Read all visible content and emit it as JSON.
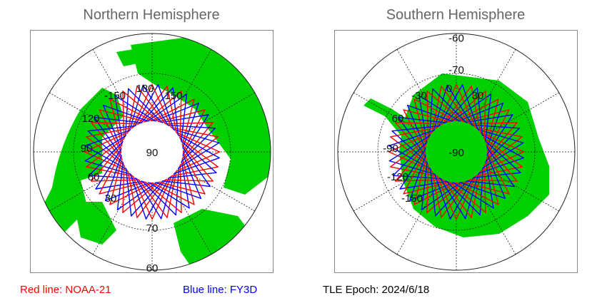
{
  "north": {
    "title": "Northern Hemisphere",
    "center_label": "90",
    "lat_labels": [
      "70",
      "60"
    ],
    "lon_labels": [
      "-150",
      "180",
      "150",
      "120",
      "90",
      "60",
      "30"
    ]
  },
  "south": {
    "title": "Southern Hemisphere",
    "center_label": "-90",
    "lat_labels": [
      "-60",
      "-70"
    ],
    "lon_labels": [
      "-30",
      "0",
      "30",
      "60",
      "-90",
      "-120",
      "-150"
    ]
  },
  "legend": {
    "red_line": "Red line: NOAA-21",
    "blue_line": "Blue line: FY3D",
    "epoch": "TLE Epoch: 2024/6/18"
  },
  "colors": {
    "land": "#00d000",
    "red_track": "#ff0000",
    "blue_track": "#0000ff",
    "grid": "#222222",
    "title": "#666666"
  }
}
